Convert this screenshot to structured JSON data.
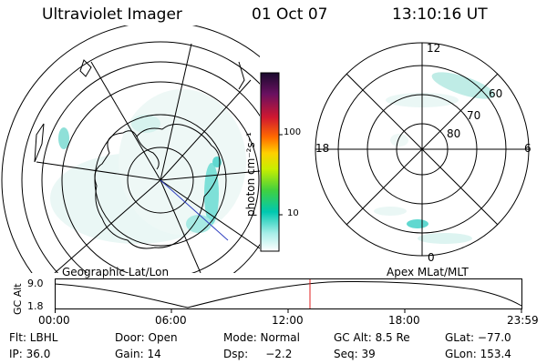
{
  "header": {
    "instrument": "Ultraviolet Imager",
    "date": "01 Oct 07",
    "time": "13:10:16 UT"
  },
  "colorbar": {
    "units_label": "photon cm⁻²s⁻¹",
    "ticks": [
      "100",
      "10"
    ],
    "colors": [
      "#1a0a2e",
      "#2a1040",
      "#6a1060",
      "#b01030",
      "#e02020",
      "#ff6a00",
      "#ffa000",
      "#ffd000",
      "#d8ee00",
      "#8ee000",
      "#40d040",
      "#00c8b0",
      "#40e0d0",
      "#a8eee8",
      "#ffffff"
    ]
  },
  "left_map": {
    "label": "Geographic Lat/Lon"
  },
  "right_polar": {
    "label": "Apex MLat/MLT",
    "mlt_labels": [
      "12",
      "18",
      "6",
      "0"
    ],
    "lat_labels": [
      "60",
      "70",
      "80"
    ]
  },
  "timeline": {
    "axis_label": "GC Alt",
    "y_top": "9.0",
    "y_bottom": "1.8",
    "x_ticks": [
      "00:00",
      "06:00",
      "12:00",
      "18:00",
      "23:59"
    ]
  },
  "info": {
    "row1": [
      "Flt: LBHL",
      "Door: Open",
      "Mode: Normal",
      "GC Alt: 8.5 Re",
      "GLat: −77.0"
    ],
    "row2": [
      "IP: 36.0",
      "Gain: 14",
      "Dsp:     −2.2",
      "Seq: 39",
      "GLon: 153.4"
    ]
  },
  "accent_colors": {
    "aurora": "#8fe0d8",
    "aurora_bright": "#30d8d0",
    "marker": "#e02020",
    "track": "#3040c0"
  }
}
